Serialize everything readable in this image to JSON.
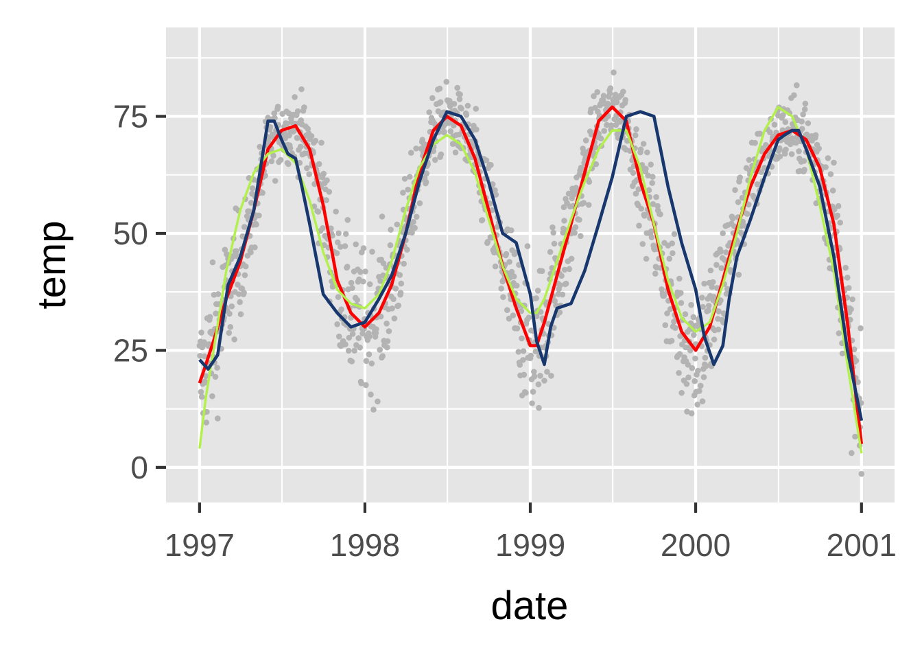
{
  "chart_data": {
    "type": "scatter",
    "xlabel": "date",
    "ylabel": "temp",
    "xlim": [
      "1996-10-19",
      "2001-03-15"
    ],
    "ylim": [
      -7.5,
      94
    ],
    "x_ticks": [
      "1997",
      "1998",
      "1999",
      "2000",
      "2001"
    ],
    "y_ticks": [
      0,
      25,
      50,
      75
    ],
    "grid": true,
    "legend": "none",
    "colors": {
      "panel": "#e5e5e5",
      "grid": "#ffffff",
      "points": "#b3b3b3",
      "line_red": "#ff0000",
      "line_green": "#b2f04a",
      "line_navy": "#17376e"
    },
    "series": [
      {
        "type": "line",
        "color": "#ff0000",
        "x": [
          "1997-01-01",
          "1997-01-15",
          "1997-02-01",
          "1997-03-01",
          "1997-04-01",
          "1997-05-01",
          "1997-06-01",
          "1997-07-01",
          "1997-08-01",
          "1997-09-01",
          "1997-10-01",
          "1997-11-01",
          "1997-12-01",
          "1998-01-01",
          "1998-02-01",
          "1998-03-01",
          "1998-04-01",
          "1998-05-01",
          "1998-06-01",
          "1998-07-01",
          "1998-08-01",
          "1998-09-01",
          "1998-10-01",
          "1998-11-01",
          "1998-12-01",
          "1999-01-01",
          "1999-01-15",
          "1999-02-01",
          "1999-03-01",
          "1999-04-01",
          "1999-05-01",
          "1999-06-01",
          "1999-07-01",
          "1999-08-01",
          "1999-09-01",
          "1999-10-01",
          "1999-11-01",
          "1999-12-01",
          "2000-01-01",
          "2000-02-01",
          "2000-03-01",
          "2000-04-01",
          "2000-05-01",
          "2000-06-01",
          "2000-07-01",
          "2000-08-01",
          "2000-09-01",
          "2000-10-01",
          "2000-11-01",
          "2000-12-01",
          "2001-01-01"
        ],
        "y": [
          18,
          22,
          27,
          36,
          44,
          55,
          68,
          72,
          73,
          68,
          56,
          40,
          33,
          30,
          33,
          39,
          50,
          63,
          72,
          75,
          73,
          66,
          55,
          43,
          34,
          26,
          26,
          31,
          41,
          52,
          63,
          74,
          77,
          74,
          61,
          52,
          38,
          29,
          25,
          30,
          40,
          51,
          60,
          67,
          71,
          72,
          70,
          64,
          52,
          31,
          5
        ],
        "name": ""
      },
      {
        "type": "line",
        "color": "#b2f04a",
        "x": [
          "1997-01-01",
          "1997-01-15",
          "1997-02-01",
          "1997-03-01",
          "1997-04-01",
          "1997-05-01",
          "1997-06-01",
          "1997-07-01",
          "1997-08-01",
          "1997-09-01",
          "1997-10-01",
          "1997-11-01",
          "1997-12-01",
          "1998-01-01",
          "1998-02-01",
          "1998-03-01",
          "1998-04-01",
          "1998-05-01",
          "1998-06-01",
          "1998-07-01",
          "1998-08-01",
          "1998-09-01",
          "1998-10-01",
          "1998-11-01",
          "1998-12-01",
          "1999-01-01",
          "1999-01-15",
          "1999-02-01",
          "1999-03-01",
          "1999-04-01",
          "1999-05-01",
          "1999-06-01",
          "1999-07-01",
          "1999-08-01",
          "1999-09-01",
          "1999-10-01",
          "1999-11-01",
          "1999-12-01",
          "2000-01-01",
          "2000-02-01",
          "2000-03-01",
          "2000-04-01",
          "2000-05-01",
          "2000-06-01",
          "2000-07-01",
          "2000-08-01",
          "2000-09-01",
          "2000-10-01",
          "2000-11-01",
          "2000-12-01",
          "2001-01-01"
        ],
        "y": [
          4,
          15,
          25,
          42,
          55,
          63,
          67,
          68,
          65,
          57,
          46,
          38,
          35,
          34,
          37,
          44,
          55,
          64,
          69,
          71,
          69,
          63,
          53,
          43,
          36,
          33,
          33,
          36,
          44,
          53,
          61,
          68,
          72,
          72,
          64,
          52,
          40,
          32,
          29,
          31,
          39,
          50,
          62,
          72,
          77,
          75,
          68,
          56,
          42,
          22,
          3
        ],
        "name": ""
      },
      {
        "type": "line",
        "color": "#17376e",
        "x": [
          "1997-01-01",
          "1997-01-20",
          "1997-02-10",
          "1997-03-05",
          "1997-04-01",
          "1997-05-01",
          "1997-06-01",
          "1997-06-15",
          "1997-07-01",
          "1997-07-15",
          "1997-08-01",
          "1997-08-15",
          "1997-09-01",
          "1997-10-01",
          "1997-11-01",
          "1997-12-01",
          "1998-01-01",
          "1998-02-01",
          "1998-03-01",
          "1998-04-01",
          "1998-05-01",
          "1998-06-01",
          "1998-07-01",
          "1998-08-01",
          "1998-09-01",
          "1998-10-01",
          "1998-11-01",
          "1998-12-01",
          "1999-01-01",
          "1999-01-15",
          "1999-02-01",
          "1999-02-15",
          "1999-03-01",
          "1999-04-01",
          "1999-05-01",
          "1999-06-01",
          "1999-07-01",
          "1999-08-01",
          "1999-09-01",
          "1999-10-01",
          "1999-11-01",
          "1999-12-01",
          "2000-01-01",
          "2000-01-20",
          "2000-02-10",
          "2000-03-01",
          "2000-03-15",
          "2000-04-01",
          "2000-05-01",
          "2000-06-01",
          "2000-07-01",
          "2000-07-15",
          "2000-08-01",
          "2000-08-15",
          "2000-09-01",
          "2000-10-01",
          "2000-11-01",
          "2000-12-01",
          "2001-01-01"
        ],
        "y": [
          23,
          21,
          24,
          39,
          45,
          55,
          74,
          74,
          70,
          67,
          66,
          60,
          52,
          37,
          33,
          30,
          31,
          36,
          41,
          50,
          61,
          70,
          76,
          75,
          70,
          61,
          50,
          48,
          37,
          27,
          22,
          30,
          34,
          35,
          42,
          52,
          62,
          75,
          76,
          75,
          60,
          48,
          38,
          28,
          22,
          26,
          36,
          45,
          53,
          62,
          70,
          71,
          72,
          72,
          68,
          60,
          45,
          25,
          10
        ],
        "name": ""
      }
    ]
  }
}
